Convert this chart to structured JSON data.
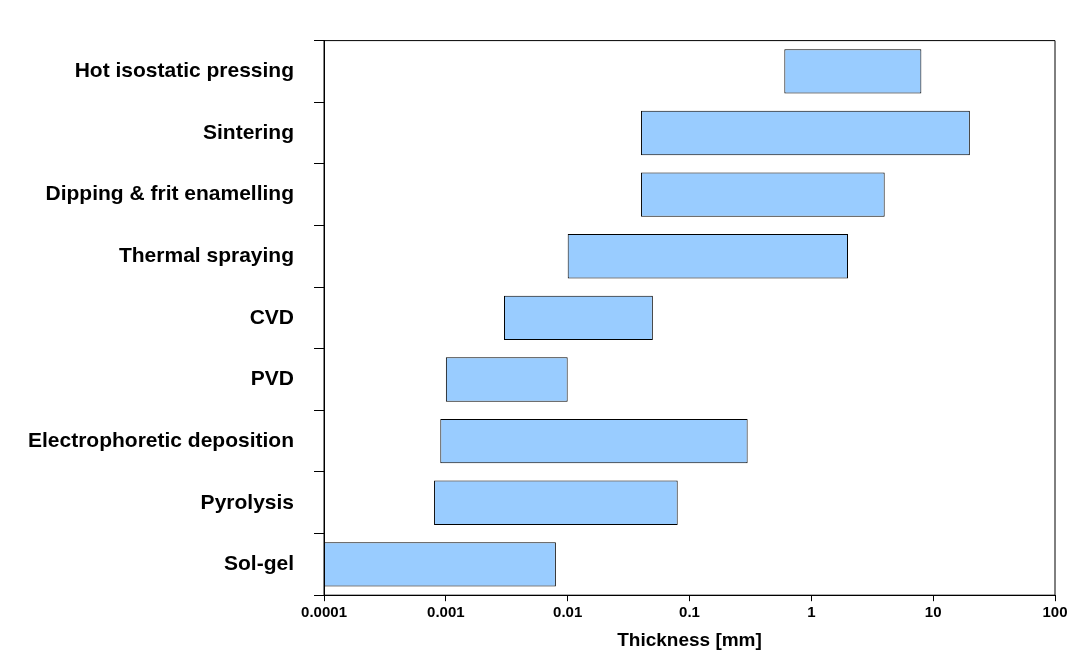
{
  "chart_data": {
    "type": "bar",
    "orientation": "horizontal",
    "log": "x",
    "xlabel": "Thickness [mm]",
    "categories": [
      "Hot isostatic pressing",
      "Sintering",
      "Dipping & frit enamelling",
      "Thermal spraying",
      "CVD",
      "PVD",
      "Electrophoretic deposition",
      "Pyrolysis",
      "Sol-gel"
    ],
    "base": [
      0.6,
      0.04,
      0.04,
      0.01,
      0.003,
      0.001,
      0.0009,
      0.0008,
      0.0001
    ],
    "values": [
      7.4,
      19.96,
      3.96,
      1.99,
      0.047,
      0.009,
      0.2991,
      0.0792,
      0.0079
    ],
    "color": "#99ccff",
    "xlim": [
      0.0001,
      100
    ],
    "xticks": [
      0.0001,
      0.001,
      0.01,
      0.1,
      1,
      10,
      100
    ],
    "grid": false,
    "legend": false
  }
}
